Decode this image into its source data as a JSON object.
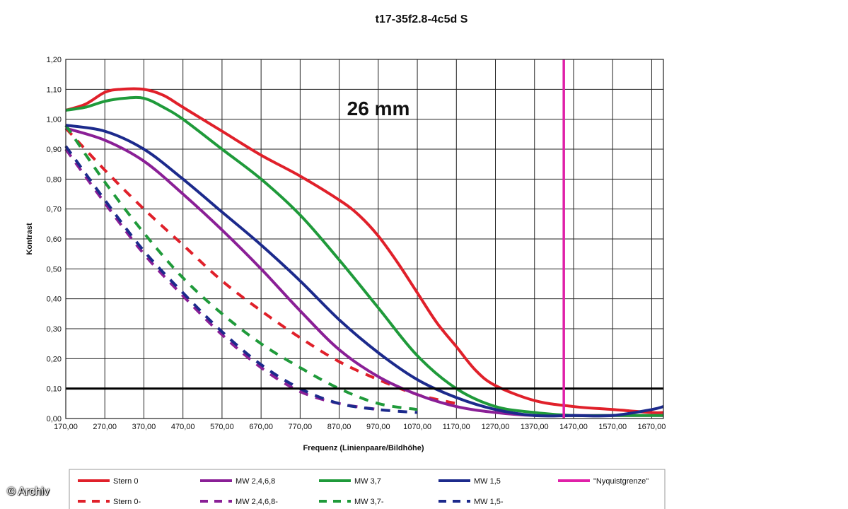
{
  "chart_data": {
    "type": "line",
    "title": "t17-35f2.8-4c5d S",
    "annotation": "26 mm",
    "xlabel": "Frequenz (Linienpaare/Bildhöhe)",
    "ylabel": "Kontrast",
    "xlim": [
      170,
      1700
    ],
    "ylim": [
      0,
      1.2
    ],
    "xticks": [
      "170,00",
      "270,00",
      "370,00",
      "470,00",
      "570,00",
      "670,00",
      "770,00",
      "870,00",
      "970,00",
      "1070,00",
      "1170,00",
      "1270,00",
      "1370,00",
      "1470,00",
      "1570,00",
      "1670,00"
    ],
    "yticks": [
      "0,00",
      "0,10",
      "0,20",
      "0,30",
      "0,40",
      "0,50",
      "0,60",
      "0,70",
      "0,80",
      "0,90",
      "1,00",
      "1,10",
      "1,20"
    ],
    "grid": true,
    "legend_position": "bottom",
    "reference_lines": [
      {
        "orientation": "horizontal",
        "value": 0.1,
        "color": "#000000"
      },
      {
        "orientation": "vertical",
        "value": 1445,
        "color": "#e020a8",
        "name": "\"Nyquistgrenze\""
      }
    ],
    "series": [
      {
        "name": "Stern 0",
        "color": "#e0202a",
        "style": "solid",
        "x": [
          170,
          220,
          270,
          310,
          370,
          420,
          470,
          570,
          670,
          770,
          870,
          920,
          970,
          1020,
          1070,
          1120,
          1170,
          1220,
          1270,
          1370,
          1470,
          1570,
          1670,
          1700
        ],
        "y": [
          1.03,
          1.05,
          1.09,
          1.1,
          1.1,
          1.08,
          1.04,
          0.96,
          0.88,
          0.81,
          0.73,
          0.68,
          0.61,
          0.52,
          0.42,
          0.32,
          0.24,
          0.16,
          0.11,
          0.06,
          0.04,
          0.03,
          0.02,
          0.02
        ]
      },
      {
        "name": "Stern 0-",
        "color": "#e0202a",
        "style": "dashed",
        "x": [
          170,
          270,
          370,
          470,
          570,
          670,
          770,
          870,
          970,
          1070,
          1170
        ],
        "y": [
          0.97,
          0.83,
          0.7,
          0.58,
          0.46,
          0.36,
          0.27,
          0.19,
          0.13,
          0.08,
          0.05
        ]
      },
      {
        "name": "MW 2,4,6,8",
        "color": "#8a1f96",
        "style": "solid",
        "x": [
          170,
          270,
          370,
          470,
          570,
          670,
          770,
          870,
          970,
          1070,
          1170,
          1270,
          1370,
          1470,
          1570,
          1670,
          1700
        ],
        "y": [
          0.97,
          0.93,
          0.86,
          0.75,
          0.63,
          0.5,
          0.36,
          0.23,
          0.14,
          0.08,
          0.04,
          0.02,
          0.01,
          0.01,
          0.01,
          0.01,
          0.01
        ]
      },
      {
        "name": "MW 2,4,6,8-",
        "color": "#8a1f96",
        "style": "dashed",
        "x": [
          170,
          270,
          370,
          470,
          570,
          670,
          770,
          870,
          970
        ],
        "y": [
          0.9,
          0.72,
          0.55,
          0.41,
          0.28,
          0.17,
          0.09,
          0.05,
          0.03
        ]
      },
      {
        "name": "MW 3,7",
        "color": "#1f9a3a",
        "style": "solid",
        "x": [
          170,
          220,
          270,
          320,
          370,
          420,
          470,
          570,
          670,
          770,
          870,
          970,
          1070,
          1170,
          1270,
          1370,
          1470,
          1570,
          1670,
          1700
        ],
        "y": [
          1.03,
          1.04,
          1.06,
          1.07,
          1.07,
          1.04,
          1.0,
          0.9,
          0.8,
          0.68,
          0.53,
          0.37,
          0.21,
          0.1,
          0.04,
          0.02,
          0.01,
          0.01,
          0.01,
          0.01
        ]
      },
      {
        "name": "MW 3,7-",
        "color": "#1f9a3a",
        "style": "dashed",
        "x": [
          170,
          270,
          370,
          470,
          570,
          670,
          770,
          870,
          970,
          1070
        ],
        "y": [
          0.98,
          0.79,
          0.62,
          0.47,
          0.35,
          0.25,
          0.17,
          0.1,
          0.05,
          0.03
        ]
      },
      {
        "name": "MW 1,5",
        "color": "#1c2a8c",
        "style": "solid",
        "x": [
          170,
          270,
          370,
          470,
          570,
          670,
          770,
          870,
          970,
          1070,
          1170,
          1270,
          1370,
          1470,
          1570,
          1670,
          1700
        ],
        "y": [
          0.98,
          0.96,
          0.9,
          0.8,
          0.69,
          0.58,
          0.46,
          0.33,
          0.22,
          0.13,
          0.07,
          0.03,
          0.01,
          0.01,
          0.01,
          0.03,
          0.04
        ]
      },
      {
        "name": "MW 1,5-",
        "color": "#1c2a8c",
        "style": "dashed",
        "x": [
          170,
          270,
          370,
          470,
          570,
          670,
          770,
          870,
          970,
          1070
        ],
        "y": [
          0.91,
          0.73,
          0.56,
          0.42,
          0.29,
          0.18,
          0.1,
          0.05,
          0.03,
          0.02
        ]
      }
    ],
    "legend": [
      [
        "Stern 0",
        "MW 2,4,6,8",
        "MW 3,7",
        "MW 1,5",
        "\"Nyquistgrenze\""
      ],
      [
        "Stern 0-",
        "MW 2,4,6,8-",
        "MW 3,7-",
        "MW 1,5-"
      ]
    ]
  },
  "watermark": "© Archiv"
}
